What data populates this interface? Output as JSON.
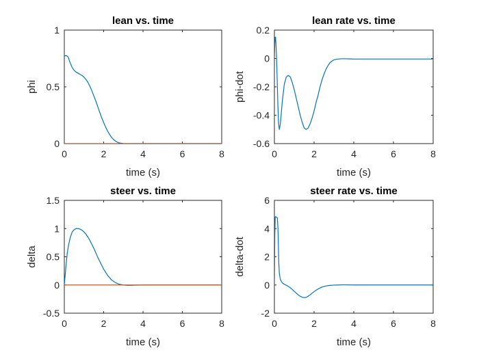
{
  "chart_data": [
    {
      "type": "line",
      "title": "lean vs. time",
      "xlabel": "time (s)",
      "ylabel": "phi",
      "xlim": [
        0,
        8
      ],
      "ylim": [
        0,
        1
      ],
      "xticks": [
        "0",
        "2",
        "4",
        "6",
        "8"
      ],
      "yticks": [
        "0",
        "0.5",
        "1"
      ],
      "grid": false,
      "series": [
        {
          "color": "#0072BD",
          "x": [
            0,
            0.05,
            0.1,
            0.15,
            0.2,
            0.3,
            0.4,
            0.5,
            0.6,
            0.7,
            0.8,
            0.9,
            1.0,
            1.1,
            1.2,
            1.3,
            1.4,
            1.5,
            1.6,
            1.7,
            1.8,
            1.9,
            2.0,
            2.1,
            2.2,
            2.3,
            2.4,
            2.5,
            2.6,
            2.7,
            2.8,
            2.9,
            3.0,
            3.2,
            3.4,
            3.6,
            4.0,
            5.0,
            6.0,
            7.0,
            8.0
          ],
          "y": [
            0.77,
            0.775,
            0.775,
            0.77,
            0.76,
            0.71,
            0.67,
            0.645,
            0.63,
            0.62,
            0.61,
            0.6,
            0.585,
            0.565,
            0.54,
            0.505,
            0.465,
            0.42,
            0.375,
            0.325,
            0.275,
            0.228,
            0.185,
            0.145,
            0.11,
            0.08,
            0.055,
            0.036,
            0.022,
            0.012,
            0.006,
            0.003,
            0.001,
            0,
            0,
            0,
            0,
            0,
            0,
            0,
            0
          ]
        },
        {
          "color": "#D95319",
          "x": [
            0,
            8
          ],
          "y": [
            0,
            0
          ]
        }
      ]
    },
    {
      "type": "line",
      "title": "lean rate vs. time",
      "xlabel": "time (s)",
      "ylabel": "phi-dot",
      "xlim": [
        0,
        8
      ],
      "ylim": [
        -0.6,
        0.2
      ],
      "xticks": [
        "0",
        "2",
        "4",
        "6",
        "8"
      ],
      "yticks": [
        "-0.6",
        "-0.4",
        "-0.2",
        "0",
        "0.2"
      ],
      "grid": false,
      "series": [
        {
          "color": "#0072BD",
          "x": [
            0,
            0.02,
            0.04,
            0.06,
            0.08,
            0.1,
            0.12,
            0.15,
            0.18,
            0.21,
            0.25,
            0.3,
            0.35,
            0.4,
            0.5,
            0.6,
            0.7,
            0.8,
            0.9,
            1.0,
            1.1,
            1.2,
            1.3,
            1.4,
            1.5,
            1.6,
            1.7,
            1.8,
            1.9,
            2.0,
            2.1,
            2.2,
            2.3,
            2.4,
            2.5,
            2.6,
            2.7,
            2.8,
            2.9,
            3.0,
            3.2,
            3.4,
            3.6,
            3.8,
            4.0,
            4.5,
            5.0,
            6.0,
            7.0,
            8.0
          ],
          "y": [
            0,
            0.1,
            0.15,
            0.15,
            0.1,
            0.03,
            -0.05,
            -0.2,
            -0.35,
            -0.46,
            -0.5,
            -0.46,
            -0.38,
            -0.3,
            -0.18,
            -0.13,
            -0.12,
            -0.13,
            -0.17,
            -0.22,
            -0.28,
            -0.34,
            -0.4,
            -0.45,
            -0.49,
            -0.5,
            -0.49,
            -0.46,
            -0.42,
            -0.37,
            -0.31,
            -0.26,
            -0.2,
            -0.15,
            -0.11,
            -0.075,
            -0.05,
            -0.03,
            -0.018,
            -0.01,
            -0.004,
            -0.002,
            -0.002,
            -0.003,
            -0.004,
            -0.004,
            -0.004,
            -0.004,
            -0.004,
            -0.004
          ]
        }
      ]
    },
    {
      "type": "line",
      "title": "steer vs. time",
      "xlabel": "time (s)",
      "ylabel": "delta",
      "xlim": [
        0,
        8
      ],
      "ylim": [
        -0.5,
        1.5
      ],
      "xticks": [
        "0",
        "2",
        "4",
        "6",
        "8"
      ],
      "yticks": [
        "-0.5",
        "0",
        "0.5",
        "1",
        "1.5"
      ],
      "grid": false,
      "series": [
        {
          "color": "#0072BD",
          "x": [
            0,
            0.05,
            0.1,
            0.15,
            0.2,
            0.3,
            0.4,
            0.5,
            0.6,
            0.7,
            0.8,
            0.9,
            1.0,
            1.1,
            1.2,
            1.3,
            1.4,
            1.5,
            1.6,
            1.7,
            1.8,
            1.9,
            2.0,
            2.2,
            2.4,
            2.6,
            2.8,
            3.0,
            3.2,
            3.4,
            3.6,
            4.0,
            5.0,
            6.0,
            7.0,
            8.0
          ],
          "y": [
            0,
            0.2,
            0.4,
            0.56,
            0.68,
            0.84,
            0.94,
            0.98,
            1.0,
            1.0,
            0.99,
            0.97,
            0.94,
            0.9,
            0.85,
            0.79,
            0.72,
            0.65,
            0.57,
            0.49,
            0.42,
            0.35,
            0.28,
            0.17,
            0.09,
            0.04,
            0.012,
            0,
            -0.006,
            -0.006,
            -0.003,
            0,
            0,
            0,
            0,
            0
          ]
        },
        {
          "color": "#D95319",
          "x": [
            0,
            8
          ],
          "y": [
            0,
            0
          ]
        }
      ]
    },
    {
      "type": "line",
      "title": "steer rate vs. time",
      "xlabel": "time (s)",
      "ylabel": "delta-dot",
      "xlim": [
        0,
        8
      ],
      "ylim": [
        -2,
        6
      ],
      "xticks": [
        "0",
        "2",
        "4",
        "6",
        "8"
      ],
      "yticks": [
        "-2",
        "0",
        "2",
        "4",
        "6"
      ],
      "grid": false,
      "series": [
        {
          "color": "#0072BD",
          "x": [
            0,
            0.02,
            0.04,
            0.06,
            0.1,
            0.15,
            0.18,
            0.2,
            0.22,
            0.25,
            0.3,
            0.35,
            0.4,
            0.5,
            0.6,
            0.7,
            0.8,
            0.9,
            1.0,
            1.1,
            1.2,
            1.3,
            1.4,
            1.5,
            1.6,
            1.7,
            1.8,
            1.9,
            2.0,
            2.2,
            2.4,
            2.6,
            2.8,
            3.0,
            3.2,
            3.4,
            3.6,
            4.0,
            4.5,
            5.0,
            6.0,
            7.0,
            8.0
          ],
          "y": [
            0,
            3.5,
            4.8,
            4.85,
            4.8,
            4.75,
            4.0,
            2.8,
            1.6,
            0.8,
            0.4,
            0.25,
            0.15,
            0.05,
            -0.02,
            -0.1,
            -0.2,
            -0.32,
            -0.45,
            -0.58,
            -0.7,
            -0.8,
            -0.87,
            -0.9,
            -0.88,
            -0.8,
            -0.7,
            -0.58,
            -0.47,
            -0.28,
            -0.15,
            -0.07,
            -0.03,
            -0.01,
            0,
            0.01,
            0.01,
            0,
            0,
            0,
            0,
            0,
            0
          ]
        }
      ]
    }
  ]
}
